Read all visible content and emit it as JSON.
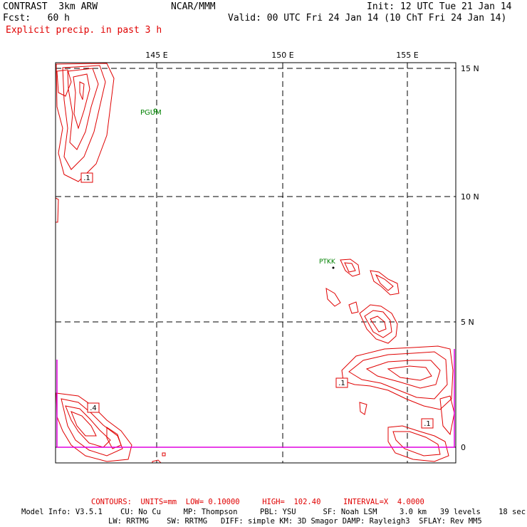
{
  "header": {
    "model": "CONTRAST  3km ARW",
    "org": "NCAR/MMM",
    "init": "Init: 12 UTC Tue 21 Jan 14",
    "fcst": "Fcst:   60 h",
    "valid": "Valid: 00 UTC Fri 24 Jan 14 (10 ChT Fri 24 Jan 14)",
    "field": "Explicit precip. in past 3 h"
  },
  "map": {
    "lon_labels": [
      "145 E",
      "150 E",
      "155 E"
    ],
    "lat_labels": [
      "15 N",
      "10 N",
      "5 N",
      "0"
    ],
    "stations": [
      "PGUM",
      "PTKK"
    ],
    "contour_labels": [
      ".1",
      ".4",
      ".1",
      ".1"
    ],
    "colors": {
      "contour": "#e00000",
      "station": "#008000",
      "boundary": "#e000e0",
      "grid": "#000000"
    }
  },
  "footer": {
    "contours": "CONTOURS:  UNITS=mm  LOW= 0.10000     HIGH=  102.40     INTERVAL=X  4.0000",
    "model_line1": "Model Info: V3.5.1    CU: No Cu     MP: Thompson     PBL: YSU      SF: Noah LSM     3.0 km   39 levels    18 sec",
    "model_line2": "LW: RRTMG    SW: RRTMG   DIFF: simple KM: 3D Smagor DAMP: Rayleigh3  SFLAY: Rev MM5"
  }
}
